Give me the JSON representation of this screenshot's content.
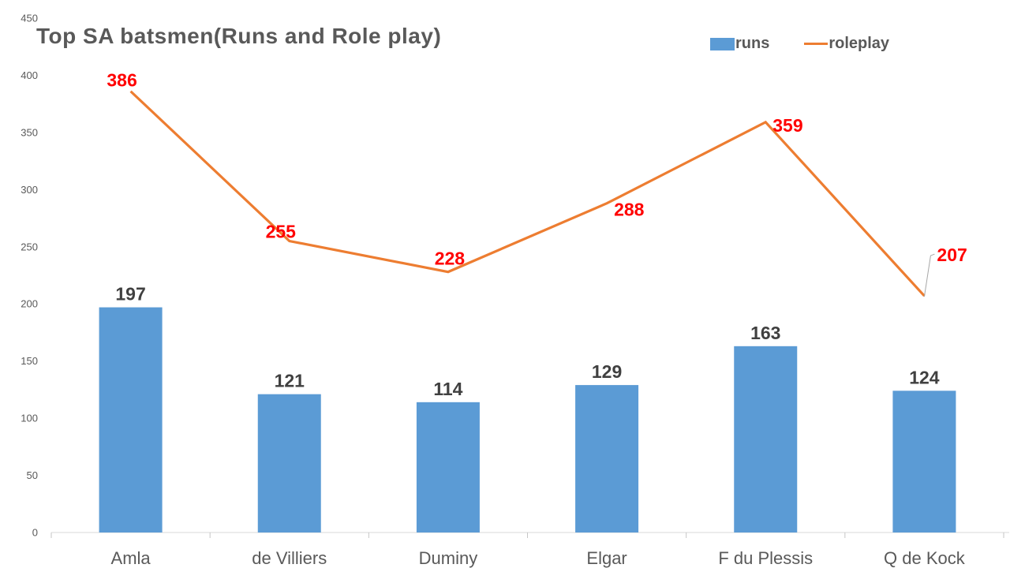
{
  "chart_data": {
    "type": "combo",
    "title": "Top SA batsmen(Runs and Role play)",
    "categories": [
      "Amla",
      "de Villiers",
      "Duminy",
      "Elgar",
      "F du Plessis",
      "Q de Kock"
    ],
    "series": [
      {
        "name": "runs",
        "type": "bar",
        "color": "#5B9BD5",
        "label_color": "#404040",
        "values": [
          197,
          121,
          114,
          129,
          163,
          124
        ]
      },
      {
        "name": "roleplay",
        "type": "line",
        "color": "#ED7D31",
        "label_color": "#FF0000",
        "values": [
          386,
          255,
          228,
          288,
          359,
          207
        ]
      }
    ],
    "xlabel": "",
    "ylabel": "",
    "ylim": [
      0,
      450
    ],
    "yticks": [
      0,
      50,
      100,
      150,
      200,
      250,
      300,
      350,
      400,
      450
    ],
    "grid": false,
    "legend_position": "top-right",
    "data_labels_shown": true
  },
  "colors": {
    "axis_line": "#D9D9D9",
    "axis_tick": "#C6C6C6",
    "axis_text": "#595959",
    "category_text": "#595959",
    "leader_line": "#A6A6A6",
    "title_text": "#595959"
  }
}
